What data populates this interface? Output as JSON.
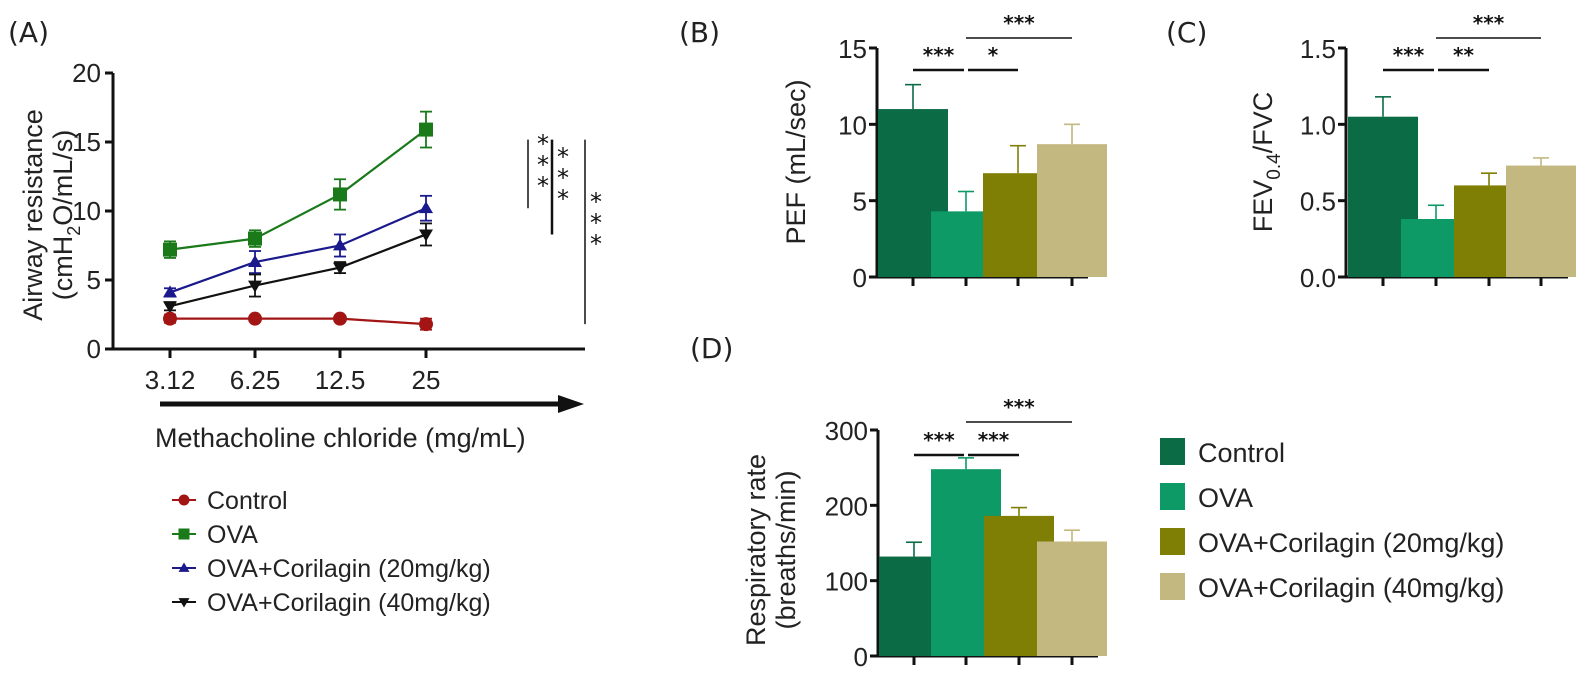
{
  "colors": {
    "control_line": "#a31515",
    "ova_line": "#1a7a1a",
    "cor20_line": "#1a1a8c",
    "cor40_line": "#111111",
    "control_bar": "#0a6b45",
    "ova_bar": "#0e9a66",
    "cor20_bar": "#7f7f05",
    "cor40_bar": "#c2b880"
  },
  "chart_data": [
    {
      "id": "A",
      "panel_label": "(A)",
      "type": "line",
      "ylabel_line1": "Airway resistance",
      "ylabel_line2_pre": "(cmH",
      "ylabel_line2_sub": "2",
      "ylabel_line2_post": "O/mL/s)",
      "xlabel": "Methacholine chloride (mg/mL)",
      "categories": [
        "3.12",
        "6.25",
        "12.5",
        "25"
      ],
      "ylim": [
        0,
        20
      ],
      "yticks": [
        0,
        5,
        10,
        15,
        20
      ],
      "grid": false,
      "legend_position": "bottom",
      "series": [
        {
          "name": "Control",
          "marker": "circle",
          "color_key": "control_line",
          "values": [
            2.2,
            2.2,
            2.2,
            1.8
          ],
          "errors": [
            0.3,
            0.2,
            0.2,
            0.4
          ]
        },
        {
          "name": "OVA",
          "marker": "square",
          "color_key": "ova_line",
          "values": [
            7.2,
            8.0,
            11.2,
            15.9
          ],
          "errors": [
            0.6,
            0.6,
            1.1,
            1.3
          ]
        },
        {
          "name": "OVA+Corilagin (20mg/kg)",
          "marker": "triangle-up",
          "color_key": "cor20_line",
          "values": [
            4.1,
            6.3,
            7.5,
            10.2
          ],
          "errors": [
            0.3,
            0.8,
            0.8,
            0.9
          ]
        },
        {
          "name": "OVA+Corilagin (40mg/kg)",
          "marker": "triangle-down",
          "color_key": "cor40_line",
          "values": [
            3.1,
            4.6,
            5.9,
            8.3
          ],
          "errors": [
            0.3,
            0.8,
            0.4,
            0.8
          ]
        }
      ],
      "annotations": [
        {
          "text": "***",
          "from": 15.9,
          "to": 10.2
        },
        {
          "text": "***",
          "from": 15.9,
          "to": 8.3
        },
        {
          "text": "***",
          "from": 15.9,
          "to": 1.8
        }
      ]
    },
    {
      "id": "B",
      "panel_label": "(B)",
      "type": "bar",
      "ylabel": "PEF (mL/sec)",
      "categories": [
        "Control",
        "OVA",
        "OVA+Corilagin (20mg/kg)",
        "OVA+Corilagin (40mg/kg)"
      ],
      "values": [
        11.0,
        4.3,
        6.8,
        8.7
      ],
      "errors": [
        1.6,
        1.3,
        1.8,
        1.3
      ],
      "ylim": [
        0,
        15
      ],
      "yticks": [
        "0",
        "5",
        "10",
        "15"
      ],
      "ytick_values": [
        0,
        5,
        10,
        15
      ],
      "grid": false,
      "annotations": [
        {
          "text": "***",
          "from": 0,
          "to": 1,
          "level": 1
        },
        {
          "text": "*",
          "from": 1,
          "to": 2,
          "level": 1
        },
        {
          "text": "***",
          "from": 1,
          "to": 3,
          "level": 2
        }
      ]
    },
    {
      "id": "C",
      "panel_label": "(C)",
      "type": "bar",
      "ylabel_pre": "FEV",
      "ylabel_sub": "0.4",
      "ylabel_post": "/FVC",
      "categories": [
        "Control",
        "OVA",
        "OVA+Corilagin (20mg/kg)",
        "OVA+Corilagin (40mg/kg)"
      ],
      "values": [
        1.05,
        0.38,
        0.6,
        0.73
      ],
      "errors": [
        0.13,
        0.09,
        0.08,
        0.05
      ],
      "ylim": [
        0,
        1.5
      ],
      "yticks": [
        "0.0",
        "0.5",
        "1.0",
        "1.5"
      ],
      "ytick_values": [
        0,
        0.5,
        1.0,
        1.5
      ],
      "grid": false,
      "annotations": [
        {
          "text": "***",
          "from": 0,
          "to": 1,
          "level": 1
        },
        {
          "text": "**",
          "from": 1,
          "to": 2,
          "level": 1
        },
        {
          "text": "***",
          "from": 1,
          "to": 3,
          "level": 2
        }
      ]
    },
    {
      "id": "D",
      "panel_label": "(D)",
      "type": "bar",
      "ylabel_line1": "Respiratory rate",
      "ylabel_line2": "(breaths/min)",
      "categories": [
        "Control",
        "OVA",
        "OVA+Corilagin (20mg/kg)",
        "OVA+Corilagin (40mg/kg)"
      ],
      "values": [
        132,
        248,
        186,
        152
      ],
      "errors": [
        19,
        15,
        11,
        15
      ],
      "ylim": [
        0,
        300
      ],
      "yticks": [
        "0",
        "100",
        "200",
        "300"
      ],
      "ytick_values": [
        0,
        100,
        200,
        300
      ],
      "grid": false,
      "annotations": [
        {
          "text": "***",
          "from": 0,
          "to": 1,
          "level": 1
        },
        {
          "text": "***",
          "from": 1,
          "to": 2,
          "level": 1
        },
        {
          "text": "***",
          "from": 1,
          "to": 3,
          "level": 2
        }
      ]
    }
  ],
  "bar_legend": {
    "position": "right",
    "items": [
      {
        "label": "Control",
        "color_key": "control_bar"
      },
      {
        "label": "OVA",
        "color_key": "ova_bar"
      },
      {
        "label": "OVA+Corilagin (20mg/kg)",
        "color_key": "cor20_bar"
      },
      {
        "label": "OVA+Corilagin (40mg/kg)",
        "color_key": "cor40_bar"
      }
    ]
  }
}
